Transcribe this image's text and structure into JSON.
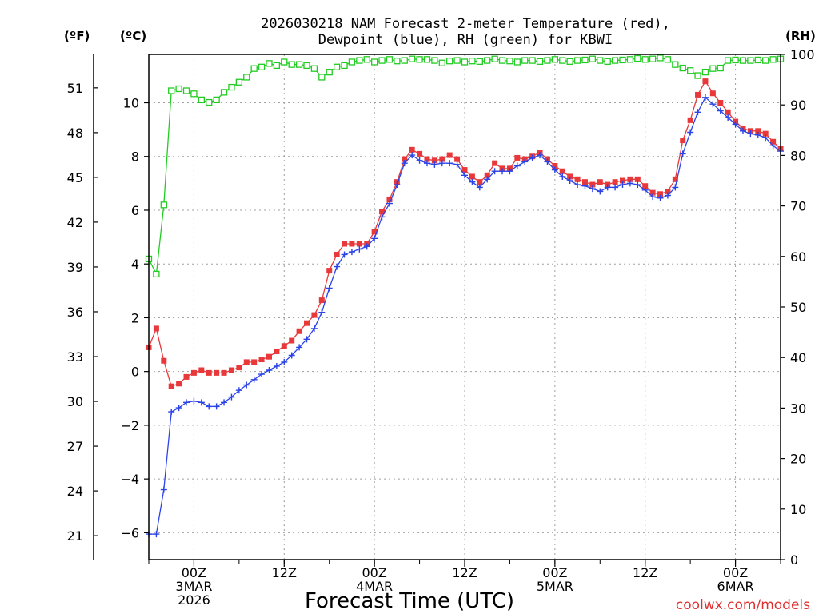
{
  "title_line1": "2026030218 NAM Forecast 2-meter Temperature (red),",
  "title_line2": "Dewpoint (blue), RH (green) for KBWI",
  "unit_f": "(ºF)",
  "unit_c": "(ºC)",
  "unit_rh": "(RH)",
  "xlabel": "Forecast Time (UTC)",
  "credit": "coolwx.com/models",
  "colors": {
    "temperature": "#e8383a",
    "dewpoint": "#2b44e8",
    "rh": "#22cc22"
  },
  "chart_data": {
    "type": "line",
    "title": "2026030218 NAM Forecast 2-meter Temperature (red), Dewpoint (blue), RH (green) for KBWI",
    "xlabel": "Forecast Time (UTC)",
    "x_unit": "forecast hour",
    "xlim": [
      0,
      84
    ],
    "ylim_c": [
      -7,
      11.8
    ],
    "ylim_rh": [
      0,
      100
    ],
    "x_ticks": [
      {
        "hour": 6,
        "lines": [
          "00Z",
          "3MAR",
          "2026"
        ]
      },
      {
        "hour": 18,
        "lines": [
          "12Z"
        ]
      },
      {
        "hour": 30,
        "lines": [
          "00Z",
          "4MAR"
        ]
      },
      {
        "hour": 42,
        "lines": [
          "12Z"
        ]
      },
      {
        "hour": 54,
        "lines": [
          "00Z",
          "5MAR"
        ]
      },
      {
        "hour": 66,
        "lines": [
          "12Z"
        ]
      },
      {
        "hour": 78,
        "lines": [
          "00Z",
          "6MAR"
        ]
      }
    ],
    "y_ticks_c": [
      "-6",
      "-4",
      "-2",
      "0",
      "2",
      "4",
      "6",
      "8",
      "10"
    ],
    "y_ticks_f": [
      "21",
      "24",
      "27",
      "30",
      "33",
      "36",
      "39",
      "42",
      "45",
      "48",
      "51"
    ],
    "y_ticks_rh": [
      "0",
      "10",
      "20",
      "30",
      "40",
      "50",
      "60",
      "70",
      "80",
      "90",
      "100"
    ],
    "series": [
      {
        "name": "Temperature (°C)",
        "color": "#e8383a",
        "marker": "filled-square",
        "axis": "left",
        "points": [
          [
            0,
            0.9
          ],
          [
            1,
            1.6
          ],
          [
            2,
            0.4
          ],
          [
            3,
            -0.55
          ],
          [
            4,
            -0.45
          ],
          [
            5,
            -0.2
          ],
          [
            6,
            -0.05
          ],
          [
            7,
            0.05
          ],
          [
            8,
            -0.05
          ],
          [
            9,
            -0.05
          ],
          [
            10,
            -0.05
          ],
          [
            11,
            0.05
          ],
          [
            12,
            0.15
          ],
          [
            13,
            0.35
          ],
          [
            14,
            0.35
          ],
          [
            15,
            0.45
          ],
          [
            16,
            0.55
          ],
          [
            17,
            0.75
          ],
          [
            18,
            0.95
          ],
          [
            19,
            1.15
          ],
          [
            20,
            1.5
          ],
          [
            21,
            1.8
          ],
          [
            22,
            2.1
          ],
          [
            23,
            2.65
          ],
          [
            24,
            3.75
          ],
          [
            25,
            4.35
          ],
          [
            26,
            4.75
          ],
          [
            27,
            4.75
          ],
          [
            28,
            4.75
          ],
          [
            29,
            4.75
          ],
          [
            30,
            5.2
          ],
          [
            31,
            5.95
          ],
          [
            32,
            6.4
          ],
          [
            33,
            7.05
          ],
          [
            34,
            7.9
          ],
          [
            35,
            8.25
          ],
          [
            36,
            8.1
          ],
          [
            37,
            7.9
          ],
          [
            38,
            7.85
          ],
          [
            39,
            7.9
          ],
          [
            40,
            8.05
          ],
          [
            41,
            7.9
          ],
          [
            42,
            7.5
          ],
          [
            43,
            7.25
          ],
          [
            44,
            7.05
          ],
          [
            45,
            7.3
          ],
          [
            46,
            7.75
          ],
          [
            47,
            7.55
          ],
          [
            48,
            7.55
          ],
          [
            49,
            7.95
          ],
          [
            50,
            7.9
          ],
          [
            51,
            8.0
          ],
          [
            52,
            8.15
          ],
          [
            53,
            7.9
          ],
          [
            54,
            7.65
          ],
          [
            55,
            7.45
          ],
          [
            56,
            7.25
          ],
          [
            57,
            7.15
          ],
          [
            58,
            7.05
          ],
          [
            59,
            6.95
          ],
          [
            60,
            7.05
          ],
          [
            61,
            6.95
          ],
          [
            62,
            7.05
          ],
          [
            63,
            7.1
          ],
          [
            64,
            7.15
          ],
          [
            65,
            7.15
          ],
          [
            66,
            6.9
          ],
          [
            67,
            6.65
          ],
          [
            68,
            6.6
          ],
          [
            69,
            6.7
          ],
          [
            70,
            7.15
          ],
          [
            71,
            8.6
          ],
          [
            72,
            9.35
          ],
          [
            73,
            10.3
          ],
          [
            74,
            10.8
          ],
          [
            75,
            10.35
          ],
          [
            76,
            10.0
          ],
          [
            77,
            9.65
          ],
          [
            78,
            9.3
          ],
          [
            79,
            9.05
          ],
          [
            80,
            8.95
          ],
          [
            81,
            8.95
          ],
          [
            82,
            8.85
          ],
          [
            83,
            8.55
          ],
          [
            84,
            8.3
          ]
        ]
      },
      {
        "name": "Dewpoint (°C)",
        "color": "#2b44e8",
        "marker": "plus",
        "axis": "left",
        "points": [
          [
            0,
            -6.05
          ],
          [
            1,
            -6.05
          ],
          [
            2,
            -4.4
          ],
          [
            3,
            -1.5
          ],
          [
            4,
            -1.35
          ],
          [
            5,
            -1.15
          ],
          [
            6,
            -1.1
          ],
          [
            7,
            -1.15
          ],
          [
            8,
            -1.3
          ],
          [
            9,
            -1.3
          ],
          [
            10,
            -1.15
          ],
          [
            11,
            -0.95
          ],
          [
            12,
            -0.7
          ],
          [
            13,
            -0.5
          ],
          [
            14,
            -0.3
          ],
          [
            15,
            -0.1
          ],
          [
            16,
            0.05
          ],
          [
            17,
            0.2
          ],
          [
            18,
            0.35
          ],
          [
            19,
            0.6
          ],
          [
            20,
            0.9
          ],
          [
            21,
            1.2
          ],
          [
            22,
            1.6
          ],
          [
            23,
            2.2
          ],
          [
            24,
            3.1
          ],
          [
            25,
            3.9
          ],
          [
            26,
            4.35
          ],
          [
            27,
            4.45
          ],
          [
            28,
            4.55
          ],
          [
            29,
            4.65
          ],
          [
            30,
            4.95
          ],
          [
            31,
            5.75
          ],
          [
            32,
            6.25
          ],
          [
            33,
            6.95
          ],
          [
            34,
            7.75
          ],
          [
            35,
            8.05
          ],
          [
            36,
            7.85
          ],
          [
            37,
            7.75
          ],
          [
            38,
            7.7
          ],
          [
            39,
            7.75
          ],
          [
            40,
            7.75
          ],
          [
            41,
            7.7
          ],
          [
            42,
            7.3
          ],
          [
            43,
            7.05
          ],
          [
            44,
            6.85
          ],
          [
            45,
            7.15
          ],
          [
            46,
            7.45
          ],
          [
            47,
            7.45
          ],
          [
            48,
            7.45
          ],
          [
            49,
            7.65
          ],
          [
            50,
            7.8
          ],
          [
            51,
            7.95
          ],
          [
            52,
            8.05
          ],
          [
            53,
            7.8
          ],
          [
            54,
            7.5
          ],
          [
            55,
            7.25
          ],
          [
            56,
            7.1
          ],
          [
            57,
            6.95
          ],
          [
            58,
            6.9
          ],
          [
            59,
            6.8
          ],
          [
            60,
            6.7
          ],
          [
            61,
            6.85
          ],
          [
            62,
            6.85
          ],
          [
            63,
            6.95
          ],
          [
            64,
            7.0
          ],
          [
            65,
            6.95
          ],
          [
            66,
            6.75
          ],
          [
            67,
            6.5
          ],
          [
            68,
            6.45
          ],
          [
            69,
            6.55
          ],
          [
            70,
            6.85
          ],
          [
            71,
            8.1
          ],
          [
            72,
            8.9
          ],
          [
            73,
            9.65
          ],
          [
            74,
            10.2
          ],
          [
            75,
            9.95
          ],
          [
            76,
            9.7
          ],
          [
            77,
            9.45
          ],
          [
            78,
            9.2
          ],
          [
            79,
            8.95
          ],
          [
            80,
            8.85
          ],
          [
            81,
            8.8
          ],
          [
            82,
            8.7
          ],
          [
            83,
            8.4
          ],
          [
            84,
            8.2
          ]
        ]
      },
      {
        "name": "Relative Humidity (%)",
        "color": "#22cc22",
        "marker": "open-square",
        "axis": "right",
        "points": [
          [
            0,
            59.5
          ],
          [
            1,
            56.5
          ],
          [
            2,
            70.2
          ],
          [
            3,
            92.8
          ],
          [
            4,
            93.2
          ],
          [
            5,
            92.8
          ],
          [
            6,
            92.2
          ],
          [
            7,
            91.0
          ],
          [
            8,
            90.5
          ],
          [
            9,
            91.0
          ],
          [
            10,
            92.5
          ],
          [
            11,
            93.5
          ],
          [
            12,
            94.5
          ],
          [
            13,
            95.5
          ],
          [
            14,
            97.2
          ],
          [
            15,
            97.5
          ],
          [
            16,
            98.2
          ],
          [
            17,
            97.8
          ],
          [
            18,
            98.5
          ],
          [
            19,
            98.0
          ],
          [
            20,
            98.0
          ],
          [
            21,
            97.8
          ],
          [
            22,
            97.2
          ],
          [
            23,
            95.5
          ],
          [
            24,
            96.5
          ],
          [
            25,
            97.5
          ],
          [
            26,
            97.8
          ],
          [
            27,
            98.5
          ],
          [
            28,
            98.8
          ],
          [
            29,
            99.0
          ],
          [
            30,
            98.5
          ],
          [
            31,
            98.8
          ],
          [
            32,
            99.0
          ],
          [
            33,
            98.7
          ],
          [
            34,
            98.8
          ],
          [
            35,
            99.1
          ],
          [
            36,
            99.0
          ],
          [
            37,
            99.0
          ],
          [
            38,
            98.8
          ],
          [
            39,
            98.3
          ],
          [
            40,
            98.7
          ],
          [
            41,
            98.8
          ],
          [
            42,
            98.5
          ],
          [
            43,
            98.7
          ],
          [
            44,
            98.6
          ],
          [
            45,
            98.8
          ],
          [
            46,
            99.1
          ],
          [
            47,
            98.8
          ],
          [
            48,
            98.7
          ],
          [
            49,
            98.5
          ],
          [
            50,
            98.8
          ],
          [
            51,
            98.8
          ],
          [
            52,
            98.6
          ],
          [
            53,
            98.8
          ],
          [
            54,
            99.0
          ],
          [
            55,
            98.8
          ],
          [
            56,
            98.6
          ],
          [
            57,
            98.8
          ],
          [
            58,
            98.9
          ],
          [
            59,
            99.1
          ],
          [
            60,
            98.8
          ],
          [
            61,
            98.6
          ],
          [
            62,
            98.8
          ],
          [
            63,
            98.9
          ],
          [
            64,
            99.0
          ],
          [
            65,
            99.2
          ],
          [
            66,
            99.0
          ],
          [
            67,
            99.1
          ],
          [
            68,
            99.3
          ],
          [
            69,
            99.0
          ],
          [
            70,
            98.0
          ],
          [
            71,
            97.3
          ],
          [
            72,
            96.8
          ],
          [
            73,
            95.8
          ],
          [
            74,
            96.5
          ],
          [
            75,
            97.2
          ],
          [
            76,
            97.3
          ],
          [
            77,
            98.8
          ],
          [
            78,
            98.9
          ],
          [
            79,
            98.8
          ],
          [
            80,
            98.8
          ],
          [
            81,
            98.9
          ],
          [
            82,
            98.8
          ],
          [
            83,
            99.0
          ],
          [
            84,
            99.1
          ]
        ]
      }
    ]
  }
}
